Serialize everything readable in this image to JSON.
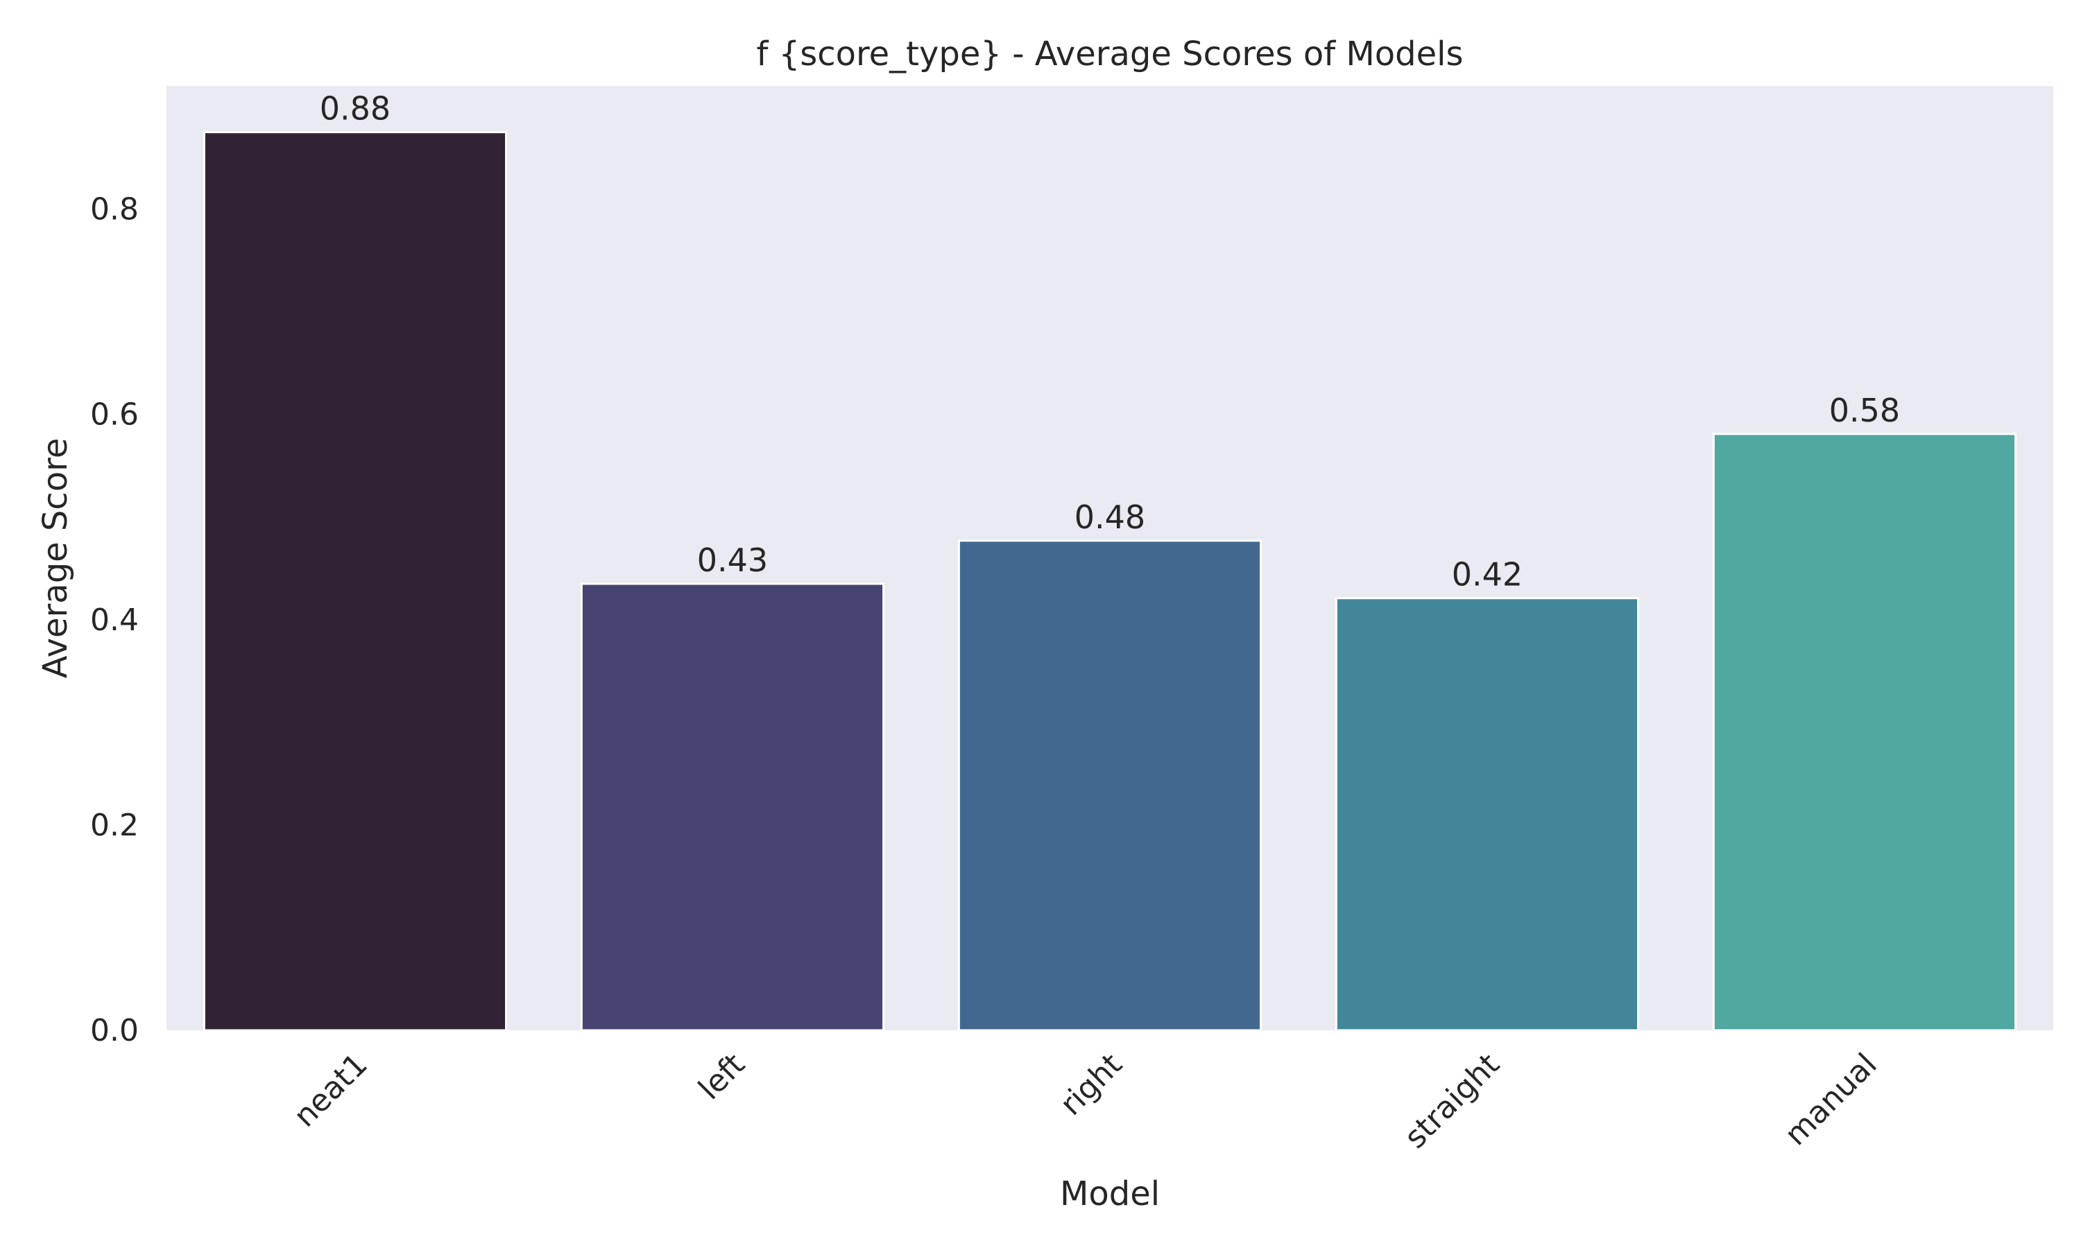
{
  "chart_data": {
    "type": "bar",
    "title": "f {score_type} - Average Scores of Models",
    "xlabel": "Model",
    "ylabel": "Average Score",
    "categories": [
      "neat1",
      "left",
      "right",
      "straight",
      "manual"
    ],
    "values": [
      0.875,
      0.435,
      0.477,
      0.421,
      0.581
    ],
    "data_labels": [
      "0.88",
      "0.43",
      "0.48",
      "0.42",
      "0.58"
    ],
    "ylim": [
      0,
      0.92
    ],
    "yticks": [
      0.0,
      0.2,
      0.4,
      0.6,
      0.8
    ],
    "ytick_labels": [
      "0.0",
      "0.2",
      "0.4",
      "0.6",
      "0.8"
    ],
    "grid": false,
    "legend": "none",
    "colors": [
      "#2f2335",
      "#474472",
      "#43688f",
      "#43869a",
      "#50a8a0"
    ],
    "plot_background": "#eaeaf2"
  }
}
